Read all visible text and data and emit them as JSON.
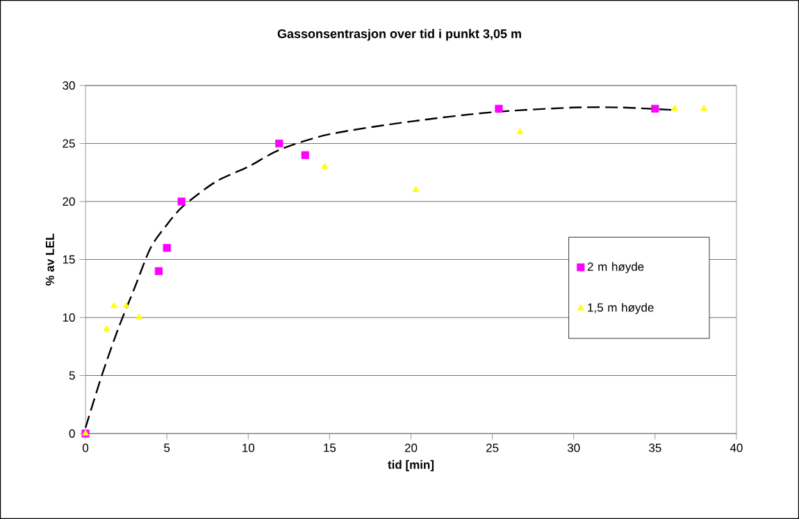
{
  "chart_data": {
    "type": "scatter",
    "title": "Gassonsentrasjon over tid i punkt 3,05 m",
    "xlabel": "tid [min]",
    "ylabel": "% av LEL",
    "xlim": [
      0,
      40
    ],
    "xticks": [
      0,
      5,
      10,
      15,
      20,
      25,
      30,
      35,
      40
    ],
    "ylim": [
      0,
      30
    ],
    "yticks": [
      0,
      5,
      10,
      15,
      20,
      25,
      30
    ],
    "grid": "y",
    "legend": "right",
    "series": [
      {
        "name": "2 m høyde",
        "color": "#ff00ff",
        "marker": "square",
        "x": [
          0,
          4.5,
          5,
          5.9,
          11.9,
          13.5,
          25.4,
          35
        ],
        "values": [
          0,
          14,
          16,
          20,
          25,
          24,
          28,
          28
        ]
      },
      {
        "name": "1,5 m høyde",
        "color": "#ffff00",
        "marker": "triangle",
        "x": [
          0,
          1.3,
          1.75,
          2.5,
          3.3,
          14.7,
          20.3,
          26.7,
          36.2,
          38
        ],
        "values": [
          0,
          9,
          11,
          11,
          10,
          23,
          21,
          26,
          28,
          28
        ]
      },
      {
        "type": "line",
        "color": "#000000",
        "line_style": "dashed",
        "marker": "none",
        "x": [
          0,
          1,
          2,
          3,
          4,
          5,
          6,
          8,
          10,
          12,
          15,
          20,
          25,
          30,
          33,
          36
        ],
        "values": [
          0.5,
          5,
          9,
          12.5,
          16,
          18,
          19.6,
          21.7,
          23,
          24.5,
          25.8,
          26.9,
          27.7,
          28.1,
          28.1,
          27.9
        ]
      }
    ]
  }
}
